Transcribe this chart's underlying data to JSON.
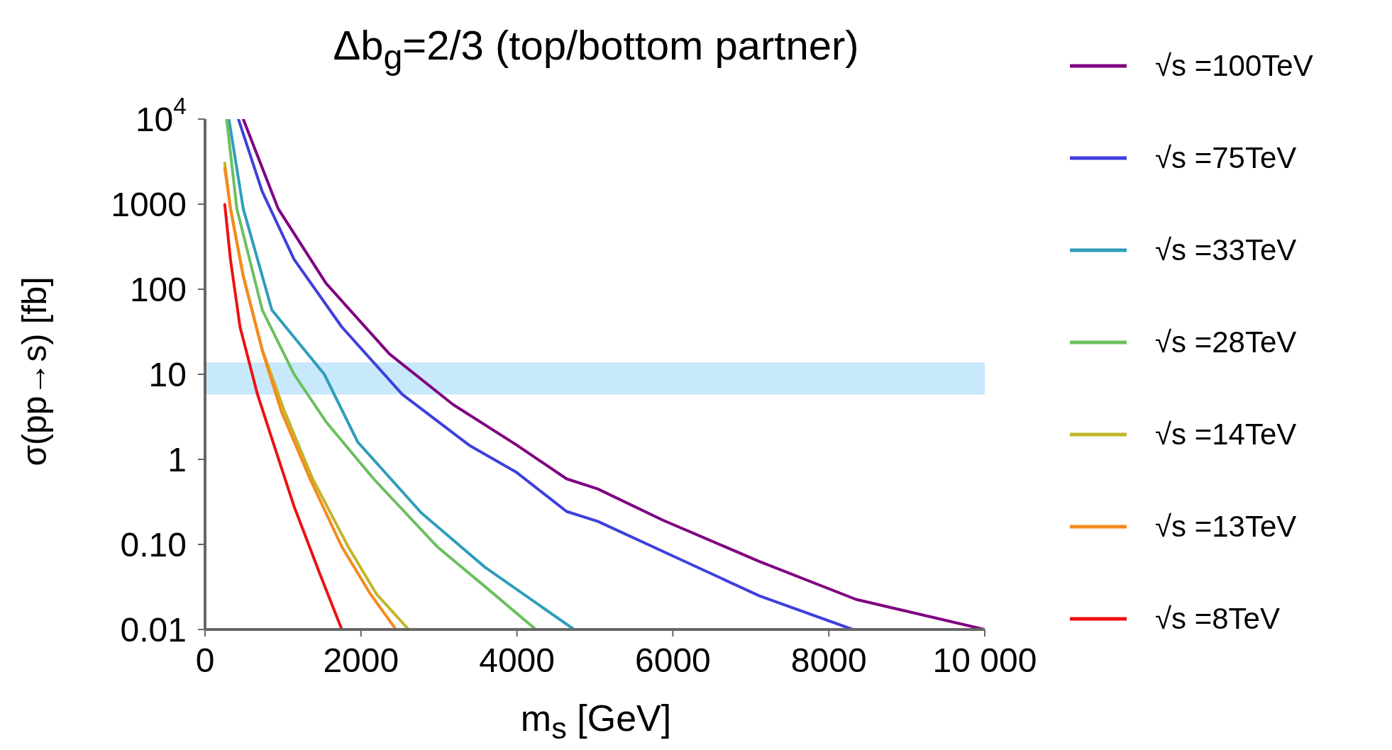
{
  "chart_data": {
    "type": "line",
    "title": "Δb$_{g}$=2/3 (top/bottom partner)",
    "xlabel": "m$_{s}$ [GeV]",
    "ylabel": "σ(pp→s) [fb]",
    "log": "y",
    "xlim": [
      0,
      10000
    ],
    "xticks": [
      0,
      2000,
      4000,
      6000,
      8000,
      {
        "value": 10000,
        "label": "10 000"
      }
    ],
    "ylim": [
      0.01,
      10000
    ],
    "yticks": [
      {
        "value": 10000,
        "label": "10$^{4}$"
      },
      1000,
      100,
      10,
      1,
      {
        "value": 0.1,
        "label": "0.10"
      },
      0.01
    ],
    "grid": false,
    "legend": "right",
    "marker": "none",
    "line_style": "solid",
    "bands": [
      {
        "axis": "y",
        "from": 5.8,
        "to": 13.8,
        "color": "#c8e8fc"
      }
    ],
    "series": [
      {
        "name": "√s =100TeV",
        "color": "#800080",
        "x": [
          490,
          938,
          1550,
          2366,
          3182,
          3998,
          4637,
          5035,
          5871,
          7111,
          8348,
          10000
        ],
        "values": [
          10000,
          885,
          118,
          17.3,
          4.4,
          1.47,
          0.59,
          0.45,
          0.193,
          0.063,
          0.0226,
          0.01
        ]
      },
      {
        "name": "√s =75TeV",
        "color": "#3f3fdd",
        "x": [
          428,
          734,
          1142,
          1754,
          2530,
          3386,
          3998,
          4637,
          5035,
          5871,
          7111,
          8308
        ],
        "values": [
          10000,
          1400,
          224,
          36,
          5.8,
          1.47,
          0.7,
          0.244,
          0.187,
          0.083,
          0.0248,
          0.01
        ]
      },
      {
        "name": "√s =33TeV",
        "color": "#2f9dbb",
        "x": [
          306,
          490,
          857,
          1530,
          1958,
          2774,
          3590,
          4733
        ],
        "values": [
          10000,
          885,
          57,
          10,
          1.6,
          0.235,
          0.054,
          0.01
        ]
      },
      {
        "name": "√s =28TeV",
        "color": "#6cbf5f",
        "x": [
          277,
          408,
          734,
          1142,
          1550,
          2162,
          2978,
          3590,
          4243
        ],
        "values": [
          10000,
          885,
          57,
          10,
          2.78,
          0.59,
          0.094,
          0.032,
          0.01
        ]
      },
      {
        "name": "√s =14TeV",
        "color": "#c2b52a",
        "x": [
          253,
          326,
          490,
          734,
          1020,
          1380,
          1836,
          2200,
          2611
        ],
        "values": [
          3040,
          900,
          145,
          19.5,
          3.66,
          0.59,
          0.094,
          0.026,
          0.01
        ]
      },
      {
        "name": "√s =13TeV",
        "color": "#f58a1f",
        "x": [
          253,
          326,
          490,
          734,
          979,
          1346,
          1754,
          2122,
          2448
        ],
        "values": [
          2650,
          885,
          142,
          19,
          3.66,
          0.59,
          0.094,
          0.026,
          0.01
        ]
      },
      {
        "name": "√s =8TeV",
        "color": "#ee1111",
        "x": [
          253,
          326,
          449,
          673,
          857,
          1142,
          1469,
          1754
        ],
        "values": [
          990,
          224,
          36,
          5.8,
          1.76,
          0.28,
          0.046,
          0.01
        ]
      }
    ]
  }
}
